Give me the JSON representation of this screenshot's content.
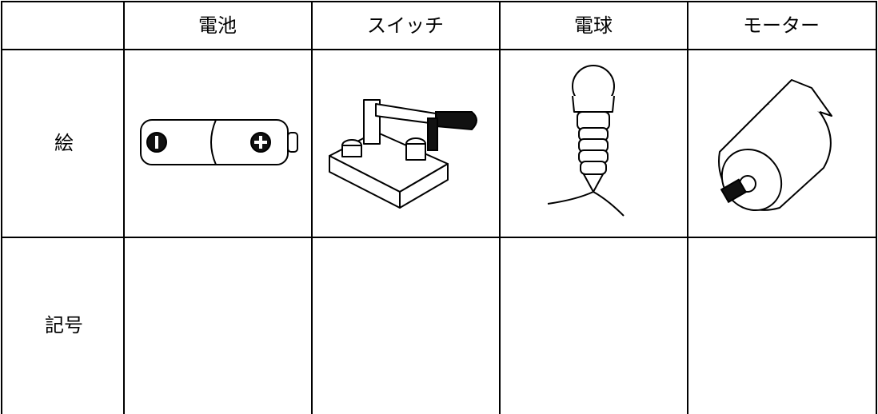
{
  "table": {
    "header": [
      "電池",
      "スイッチ",
      "電球",
      "モーター"
    ],
    "rows": [
      {
        "label": "絵"
      },
      {
        "label": "記号"
      }
    ]
  }
}
